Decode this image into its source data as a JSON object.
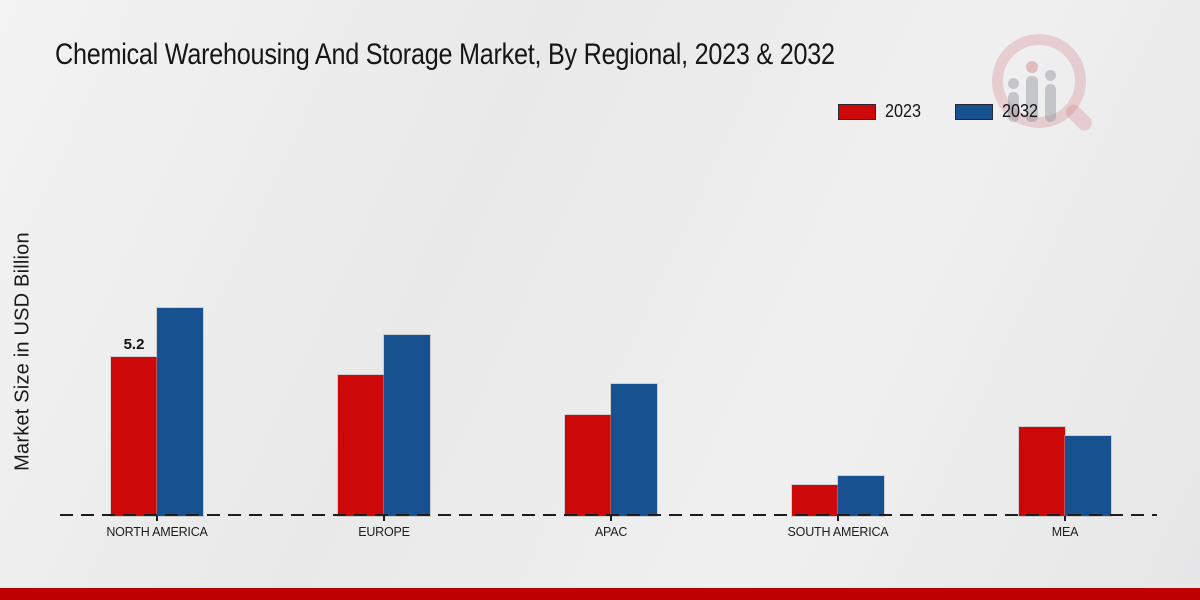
{
  "page": {
    "title": "Chemical Warehousing And Storage Market, By Regional, 2023 & 2032",
    "footer_color": "#bf0000"
  },
  "legend": {
    "position": "top-right",
    "items": [
      {
        "label": "2023",
        "color": "#cc0808"
      },
      {
        "label": "2032",
        "color": "#17518f"
      }
    ]
  },
  "watermark": {
    "name": "market-research-future-logo"
  },
  "chart_data": {
    "type": "bar",
    "title": "Chemical Warehousing And Storage Market, By Regional, 2023 & 2032",
    "xlabel": "",
    "ylabel": "Market Size in USD Billion",
    "categories": [
      "NORTH AMERICA",
      "EUROPE",
      "APAC",
      "SOUTH AMERICA",
      "MEA"
    ],
    "series": [
      {
        "name": "2023",
        "color": "#cc0808",
        "values": [
          5.2,
          4.6,
          3.3,
          1.0,
          2.9
        ]
      },
      {
        "name": "2032",
        "color": "#17518f",
        "values": [
          6.8,
          5.9,
          4.3,
          1.3,
          2.6
        ]
      }
    ],
    "annotations": [
      {
        "category": "NORTH AMERICA",
        "series": "2023",
        "text": "5.2"
      }
    ],
    "ylim": [
      0,
      7.5
    ],
    "grid": false,
    "baseline_style": "dashed",
    "legend_position": "top-right",
    "units": "USD Billion"
  }
}
